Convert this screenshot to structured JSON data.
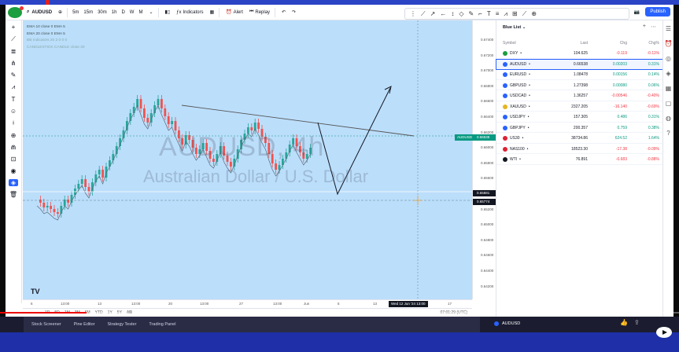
{
  "toolbar": {
    "symbol": "AUDUSD",
    "timeframes": [
      "5m",
      "15m",
      "30m",
      "1h",
      "D",
      "W",
      "M"
    ],
    "indicators_label": "Indicators",
    "alert_label": "Alert",
    "replay_label": "Replay",
    "publish_label": "Publish"
  },
  "legend": {
    "line1": "EMA 10 close 0 EMA 5",
    "line2": "EMA 20 close 0 EMA 5",
    "line3": "BB Indicators 20 2 0 0 0",
    "line4": "CANDLESTICK CANDLE close 20"
  },
  "watermark": {
    "symbol": "AUDUSD, 4h",
    "name": "Australian Dollar / U.S. Dollar"
  },
  "price_axis": {
    "ticks": [
      "0.67400",
      "0.67200",
      "0.67000",
      "0.66800",
      "0.66600",
      "0.66400",
      "0.66200",
      "0.66000",
      "0.65800",
      "0.65600",
      "0.65400",
      "0.65200",
      "0.65000",
      "0.64800",
      "0.64600",
      "0.64400",
      "0.64200"
    ],
    "symbol_tag": "AUDUSD",
    "current_price": "0.66538",
    "level_1": "0.65881",
    "level_2": "0.65774"
  },
  "time_axis": {
    "ticks": [
      "6",
      "13:00",
      "13",
      "13:00",
      "20",
      "13:00",
      "27",
      "13:00",
      "Jun",
      "5",
      "13",
      "17"
    ],
    "crosshair_label": "Wed 12 Jun '24  13:00"
  },
  "range_bar": {
    "ranges": [
      "1D",
      "5D",
      "1M",
      "3M",
      "6M",
      "YTD",
      "1Y",
      "5Y",
      "All"
    ],
    "time": "07:01:29 (UTC)"
  },
  "watchlist": {
    "title": "Blue List",
    "columns": {
      "symbol": "Symbol",
      "last": "Last",
      "chg": "Chg",
      "chgp": "Chg%"
    },
    "rows": [
      {
        "symbol": "DXY",
        "last": "104.625",
        "chg": "-0.119",
        "chgp": "-0.11%",
        "dir": "neg",
        "color": "#1a9e3e"
      },
      {
        "symbol": "AUDUSD",
        "last": "0.66538",
        "chg": "0.00203",
        "chgp": "0.31%",
        "dir": "pos",
        "color": "#2962ff",
        "selected": true
      },
      {
        "symbol": "EURUSD",
        "last": "1.08478",
        "chg": "0.00156",
        "chgp": "0.14%",
        "dir": "pos",
        "color": "#2962ff"
      },
      {
        "symbol": "GBPUSD",
        "last": "1.27398",
        "chg": "0.00080",
        "chgp": "0.06%",
        "dir": "pos",
        "color": "#2962ff"
      },
      {
        "symbol": "USDCAD",
        "last": "1.36257",
        "chg": "-0.00546",
        "chgp": "-0.40%",
        "dir": "neg",
        "color": "#2962ff"
      },
      {
        "symbol": "XAUUSD",
        "last": "2327.205",
        "chg": "-16.140",
        "chgp": "-0.69%",
        "dir": "neg",
        "color": "#e6b422"
      },
      {
        "symbol": "USDJPY",
        "last": "157.305",
        "chg": "0.486",
        "chgp": "0.31%",
        "dir": "pos",
        "color": "#2962ff"
      },
      {
        "symbol": "GBPJPY",
        "last": "200.357",
        "chg": "0.759",
        "chgp": "0.38%",
        "dir": "pos",
        "color": "#2962ff"
      },
      {
        "symbol": "US30",
        "last": "38734.86",
        "chg": "624.52",
        "chgp": "1.64%",
        "dir": "pos",
        "color": "#d23"
      },
      {
        "symbol": "NAS100",
        "last": "18523.30",
        "chg": "-17.38",
        "chgp": "-0.09%",
        "dir": "neg",
        "color": "#d23"
      },
      {
        "symbol": "WTI",
        "last": "76.891",
        "chg": "-0.683",
        "chgp": "-0.88%",
        "dir": "neg",
        "color": "#131722"
      }
    ]
  },
  "bottom_panel": {
    "tabs": [
      "Stock Screener",
      "Pine Editor",
      "Strategy Tester",
      "Trading Panel"
    ],
    "symbol": "AUDUSD"
  },
  "colors": {
    "chart_bg": "#bbdefb",
    "bull": "#26a69a",
    "bear": "#ef5350",
    "accent": "#2962ff",
    "bottom_bar": "#1b1c30"
  }
}
